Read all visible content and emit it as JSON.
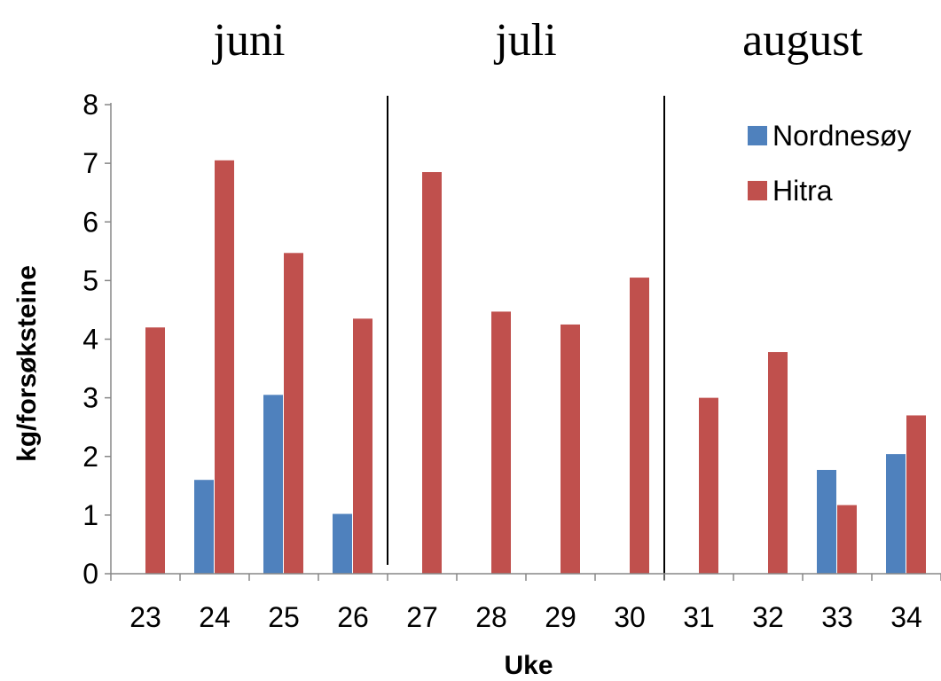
{
  "chart_data": {
    "type": "bar",
    "xlabel": "Uke",
    "ylabel": "kg/forsøksteine",
    "ylim": [
      0,
      8
    ],
    "yticks": [
      0,
      1,
      2,
      3,
      4,
      5,
      6,
      7,
      8
    ],
    "categories": [
      "23",
      "24",
      "25",
      "26",
      "27",
      "28",
      "29",
      "30",
      "31",
      "32",
      "33",
      "34"
    ],
    "series": [
      {
        "name": "Nordnesøy",
        "color": "#4f81bd",
        "values": [
          0,
          1.6,
          3.05,
          1.02,
          0,
          0,
          0,
          0,
          0,
          0,
          1.77,
          2.04
        ]
      },
      {
        "name": "Hitra",
        "color": "#c0504d",
        "values": [
          4.2,
          7.05,
          5.47,
          4.35,
          6.85,
          4.47,
          4.25,
          5.05,
          3.0,
          3.78,
          1.17,
          2.7
        ]
      }
    ],
    "month_groups": [
      {
        "label": "juni",
        "start_category": "23",
        "end_category": "26"
      },
      {
        "label": "juli",
        "start_category": "27",
        "end_category": "30"
      },
      {
        "label": "august",
        "start_category": "31",
        "end_category": "34"
      }
    ],
    "legend_position": "top-right",
    "grid": false
  }
}
